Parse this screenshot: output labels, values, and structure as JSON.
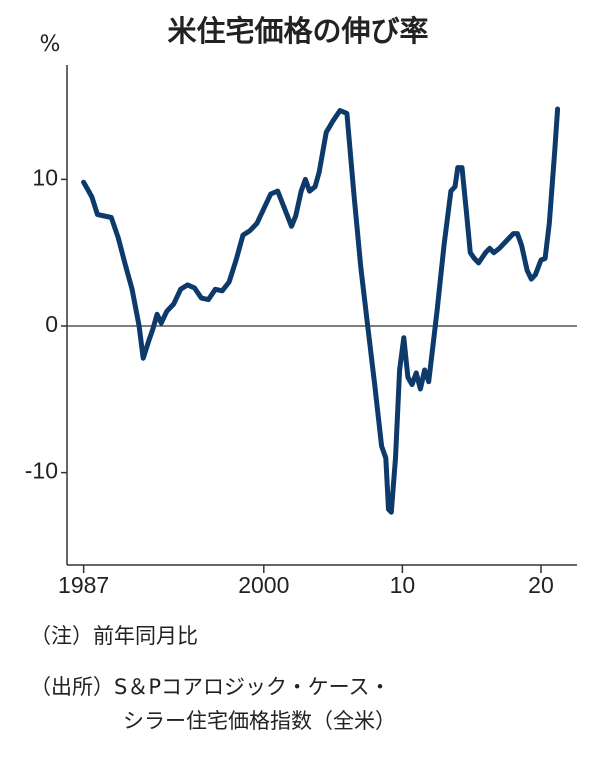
{
  "chart_data": {
    "type": "line",
    "title": "米住宅価格の伸び率",
    "y_unit": "%",
    "x": [
      1987.0,
      1987.3,
      1987.6,
      1988.0,
      1988.5,
      1989.0,
      1989.5,
      1990.0,
      1990.5,
      1991.0,
      1991.3,
      1991.7,
      1992.0,
      1992.3,
      1992.6,
      1993.0,
      1993.5,
      1994.0,
      1994.5,
      1995.0,
      1995.5,
      1996.0,
      1996.5,
      1997.0,
      1997.5,
      1998.0,
      1998.5,
      1999.0,
      1999.5,
      2000.0,
      2000.5,
      2001.0,
      2001.5,
      2002.0,
      2002.3,
      2002.7,
      2003.0,
      2003.3,
      2003.7,
      2004.0,
      2004.5,
      2005.0,
      2005.5,
      2006.0,
      2006.5,
      2007.0,
      2007.5,
      2008.0,
      2008.5,
      2008.8,
      2009.0,
      2009.2,
      2009.5,
      2009.8,
      2010.1,
      2010.4,
      2010.7,
      2011.0,
      2011.3,
      2011.6,
      2011.9,
      2012.5,
      2013.0,
      2013.5,
      2013.8,
      2014.0,
      2014.3,
      2014.6,
      2014.9,
      2015.2,
      2015.5,
      2016.0,
      2016.3,
      2016.6,
      2017.0,
      2017.5,
      2018.0,
      2018.3,
      2018.6,
      2019.0,
      2019.3,
      2019.6,
      2020.0,
      2020.3,
      2020.6,
      2021.0,
      2021.2
    ],
    "values": [
      9.8,
      9.3,
      8.8,
      7.6,
      7.5,
      7.4,
      6.0,
      4.2,
      2.5,
      0.0,
      -2.2,
      -1.0,
      -0.2,
      0.8,
      0.2,
      1.0,
      1.5,
      2.5,
      2.8,
      2.6,
      1.9,
      1.8,
      2.5,
      2.4,
      3.0,
      4.5,
      6.2,
      6.5,
      7.0,
      8.0,
      9.0,
      9.2,
      8.0,
      6.8,
      7.5,
      9.2,
      10.0,
      9.2,
      9.5,
      10.5,
      13.2,
      14.0,
      14.7,
      14.5,
      9.0,
      4.0,
      0.0,
      -4.0,
      -8.2,
      -9.0,
      -12.5,
      -12.7,
      -9.0,
      -3.0,
      -0.8,
      -3.5,
      -4.0,
      -3.2,
      -4.3,
      -3.0,
      -3.8,
      1.0,
      5.5,
      9.2,
      9.5,
      10.8,
      10.8,
      8.0,
      5.0,
      4.6,
      4.3,
      5.0,
      5.3,
      5.0,
      5.3,
      5.8,
      6.3,
      6.3,
      5.5,
      3.8,
      3.2,
      3.5,
      4.5,
      4.6,
      7.0,
      12.0,
      14.8
    ],
    "color": "#0d3a6b",
    "xlim": [
      1985.8,
      2022.6
    ],
    "xticks": [
      1987,
      2000,
      {
        "value": 2010,
        "label": "10"
      },
      {
        "value": 2020,
        "label": "20"
      }
    ],
    "ylim": [
      -16.3,
      17.8
    ],
    "yticks": [
      -10,
      0,
      10
    ],
    "zero_line": true,
    "note": "（注）前年同月比",
    "source": [
      "（出所）S＆Pコアロジック・ケース・",
      "シラー住宅価格指数（全米）"
    ]
  }
}
